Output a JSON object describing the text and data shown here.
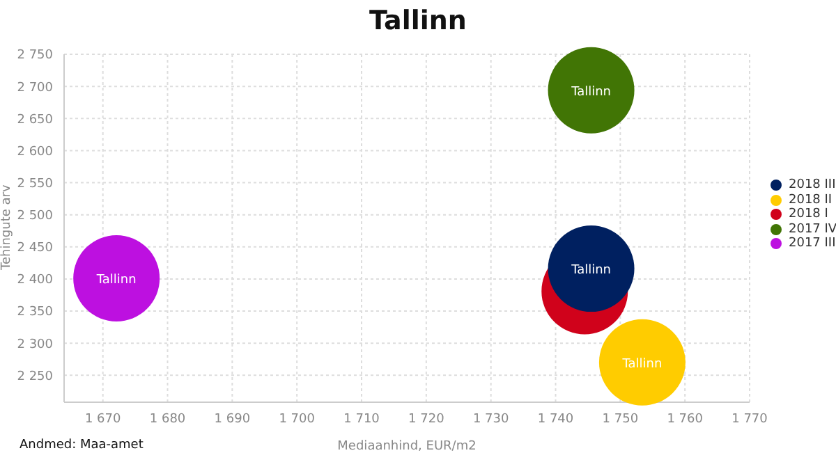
{
  "chart_data": {
    "type": "bubble",
    "title": "Tallinn",
    "xlabel": "Mediaanhind, EUR/m2",
    "ylabel": "Tehingute arv",
    "xlim": [
      1664,
      1770
    ],
    "xticks": [
      {
        "value": 1670,
        "label": "1 670"
      },
      {
        "value": 1680,
        "label": "1 680"
      },
      {
        "value": 1690,
        "label": "1 690"
      },
      {
        "value": 1700,
        "label": "1 700"
      },
      {
        "value": 1710,
        "label": "1 710"
      },
      {
        "value": 1720,
        "label": "1 720"
      },
      {
        "value": 1730,
        "label": "1 730"
      },
      {
        "value": 1740,
        "label": "1 740"
      },
      {
        "value": 1750,
        "label": "1 750"
      },
      {
        "value": 1760,
        "label": "1 760"
      },
      {
        "value": 1770,
        "label": "1 770"
      }
    ],
    "ylim": [
      2208,
      2750
    ],
    "yticks": [
      {
        "value": 2250,
        "label": "2 250"
      },
      {
        "value": 2300,
        "label": "2 300"
      },
      {
        "value": 2350,
        "label": "2 350"
      },
      {
        "value": 2400,
        "label": "2 400"
      },
      {
        "value": 2450,
        "label": "2 450"
      },
      {
        "value": 2500,
        "label": "2 500"
      },
      {
        "value": 2550,
        "label": "2 550"
      },
      {
        "value": 2600,
        "label": "2 600"
      },
      {
        "value": 2650,
        "label": "2 650"
      },
      {
        "value": 2700,
        "label": "2 700"
      },
      {
        "value": 2750,
        "label": "2 750"
      }
    ],
    "grid": true,
    "legend": "right",
    "marker": "circle",
    "series": [
      {
        "name": "2018 III",
        "color": "#002060",
        "x": [
          1745.5
        ],
        "values": [
          2416
        ],
        "sizes": [
          1
        ]
      },
      {
        "name": "2018 II",
        "color": "#ffcc00",
        "x": [
          1753.4
        ],
        "values": [
          2270
        ],
        "sizes": [
          1
        ]
      },
      {
        "name": "2018 I",
        "color": "#d0021b",
        "x": [
          1744.5
        ],
        "values": [
          2381
        ],
        "sizes": [
          1
        ]
      },
      {
        "name": "2017 IV",
        "color": "#417505",
        "x": [
          1745.5
        ],
        "values": [
          2694
        ],
        "sizes": [
          1
        ]
      },
      {
        "name": "2017 III",
        "color": "#bd10e0",
        "x": [
          1672.1
        ],
        "values": [
          2401
        ],
        "sizes": [
          1
        ]
      }
    ],
    "annotations": [
      {
        "text": "Tallinn",
        "x": 1745.5,
        "y": 2416
      },
      {
        "text": "Tallinn",
        "x": 1753.4,
        "y": 2270
      },
      {
        "text": "Tallinn",
        "x": 1745.5,
        "y": 2694
      },
      {
        "text": "Tallinn",
        "x": 1672.1,
        "y": 2401
      },
      "Andmed: Maa-amet"
    ]
  }
}
